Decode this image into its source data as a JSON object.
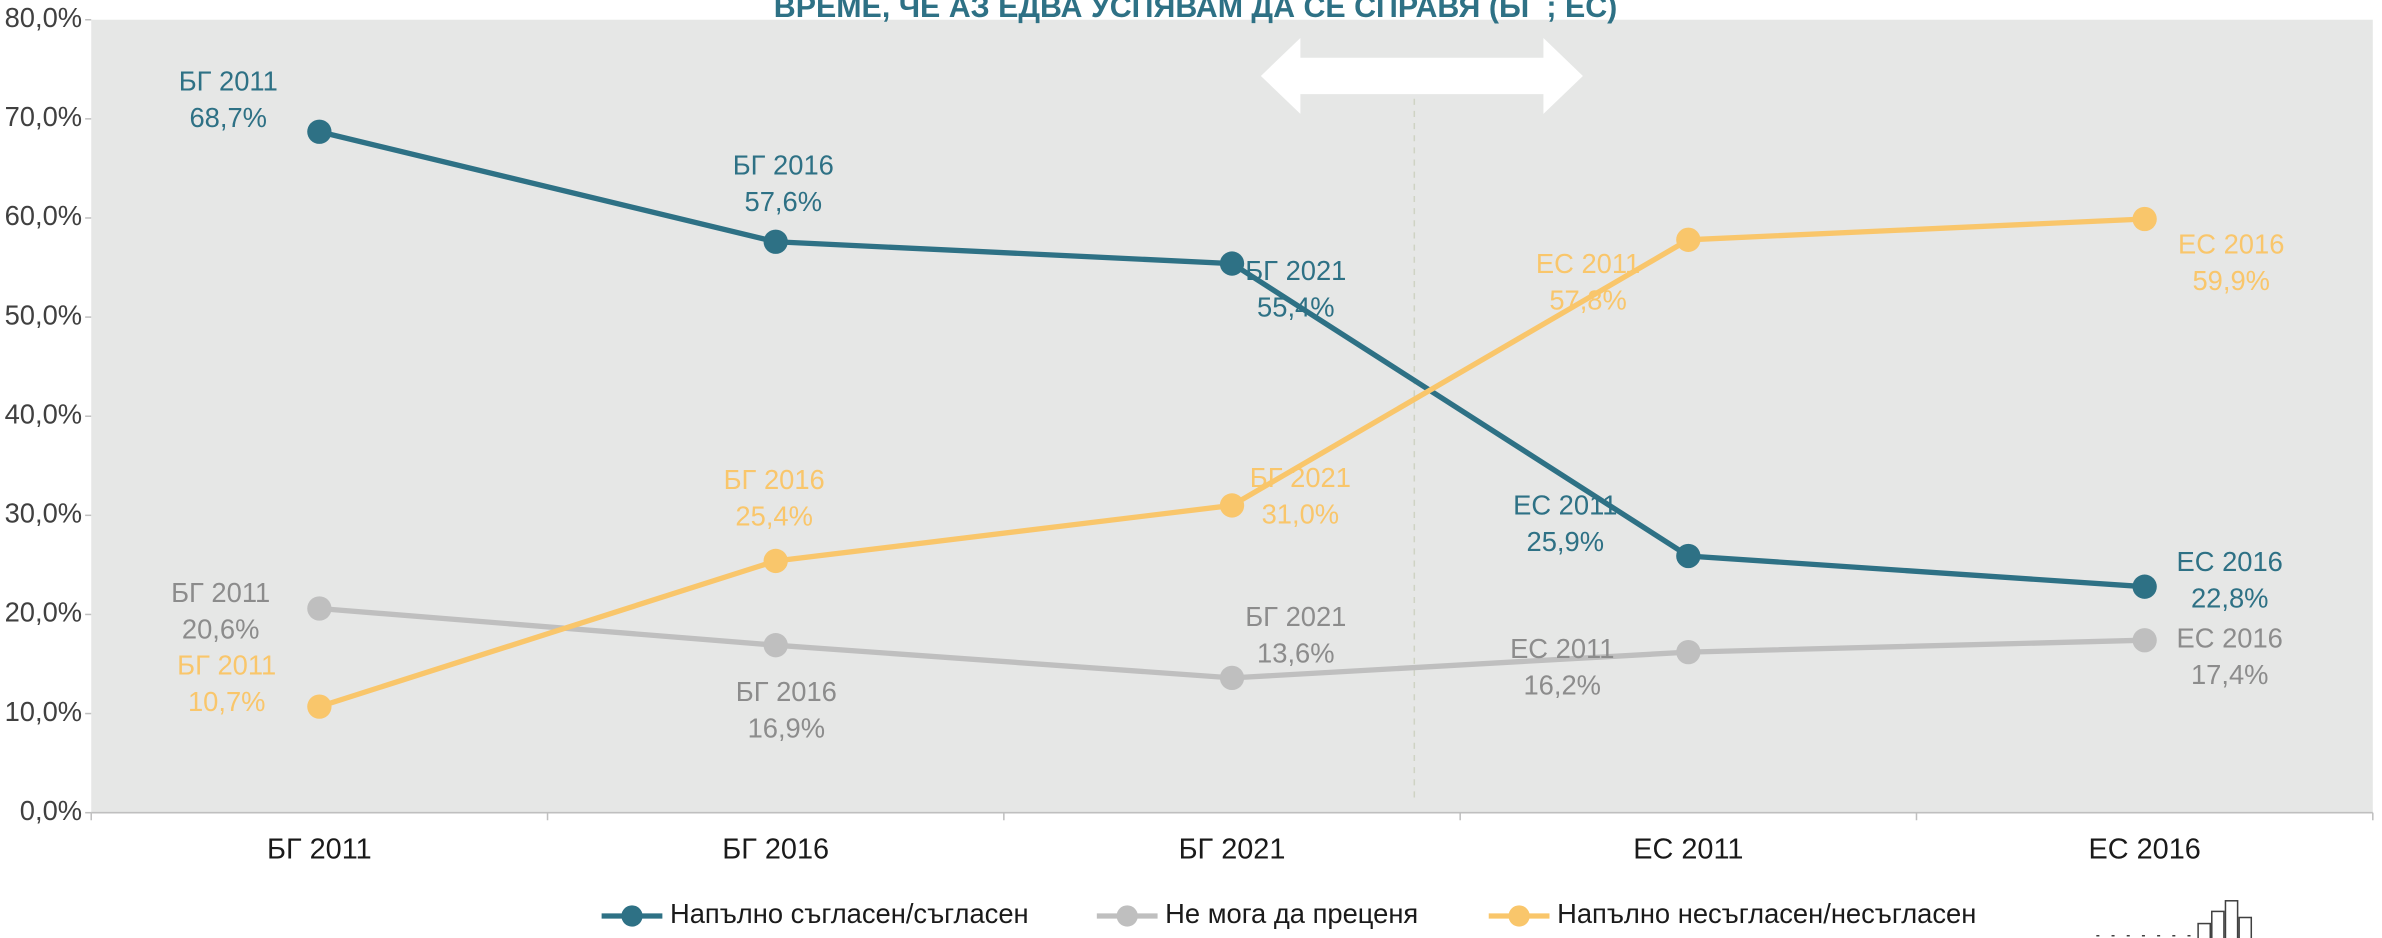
{
  "chart_data": {
    "type": "line",
    "title": "ВРЕМЕ, ЧЕ АЗ ЕДВА УСПЯВАМ ДА СЕ СПРАВЯ (БГ ; ЕС)",
    "categories": [
      "БГ 2011",
      "БГ 2016",
      "БГ 2021",
      "ЕС 2011",
      "ЕС 2016"
    ],
    "series": [
      {
        "name": "Напълно съгласен/съгласен",
        "color": "#2e7185",
        "values": [
          68.7,
          57.6,
          55.4,
          25.9,
          22.8
        ],
        "value_labels": [
          "68,7%",
          "57,6%",
          "55,4%",
          "25,9%",
          "22,8%"
        ]
      },
      {
        "name": "Не мога да преценя",
        "color": "#bfbfbf",
        "values": [
          20.6,
          16.9,
          13.6,
          16.2,
          17.4
        ],
        "value_labels": [
          "20,6%",
          "16,9%",
          "13,6%",
          "16,2%",
          "17,4%"
        ]
      },
      {
        "name": "Напълно несъгласен/несъгласен",
        "color": "#f9c66b",
        "values": [
          10.7,
          25.4,
          31.0,
          57.8,
          59.9
        ],
        "value_labels": [
          "10,7%",
          "25,4%",
          "31,0%",
          "57,8%",
          "59,9%"
        ]
      }
    ],
    "ylim": [
      0,
      80
    ],
    "yticks": [
      {
        "value": 0,
        "label": "0,0%"
      },
      {
        "value": 10,
        "label": "10,0%"
      },
      {
        "value": 20,
        "label": "20,0%"
      },
      {
        "value": 30,
        "label": "30,0%"
      },
      {
        "value": 40,
        "label": "40,0%"
      },
      {
        "value": 50,
        "label": "50,0%"
      },
      {
        "value": 60,
        "label": "60,0%"
      },
      {
        "value": 70,
        "label": "70,0%"
      },
      {
        "value": 80,
        "label": "80,0%"
      }
    ],
    "legend": "bottom"
  }
}
